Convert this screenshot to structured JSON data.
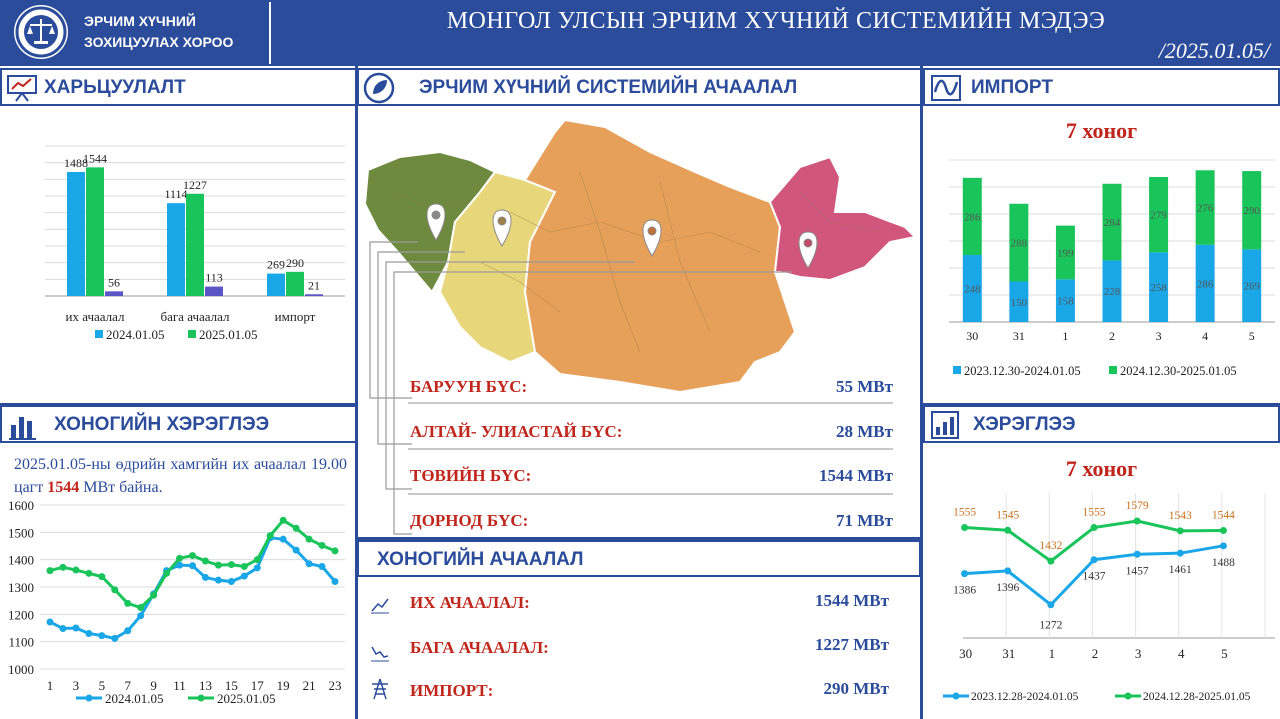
{
  "header": {
    "org_line1": "ЭРЧИМ ХҮЧНИЙ",
    "org_line2": "ЗОХИЦУУЛАХ ХОРОО",
    "title": "МОНГОЛ УЛСЫН ЭРЧИМ ХҮЧНИЙ СИСТЕМИЙН МЭДЭЭ",
    "date": "/2025.01.05/"
  },
  "panels": {
    "compare": "ХАРЬЦУУЛАЛТ",
    "system_load": "ЭРЧИМ ХҮЧНИЙ СИСТЕМИЙН АЧААЛАЛ",
    "import": "ИМПОРТ",
    "daily_consumption": "ХОНОГИЙН ХЭРЭГЛЭЭ",
    "consumption": "ХЭРЭГЛЭЭ",
    "daily_load": "ХОНОГИЙН АЧААЛАЛ"
  },
  "import_subtitle": "7 хоног",
  "consumption_subtitle": "7 хоног",
  "daily_note": {
    "before": "2025.01.05-ны өдрийн хамгийн их ачаалал 19.00 цагт ",
    "value": "1544",
    "after": " МВт байна."
  },
  "regions": [
    {
      "label": "БАРУУН БҮС:",
      "value": "55 МВт"
    },
    {
      "label": "АЛТАЙ- УЛИАСТАЙ БҮС:",
      "value": "28 МВт"
    },
    {
      "label": "ТӨВИЙН БҮС:",
      "value": "1544 МВт"
    },
    {
      "label": "ДОРНОД БҮС:",
      "value": "71 МВт"
    }
  ],
  "daily_load": [
    {
      "label": "ИХ АЧААЛАЛ:",
      "value": "1544 МВт",
      "icon": "trend-up-icon"
    },
    {
      "label": "БАГА АЧААЛАЛ:",
      "value": "1227 МВт",
      "icon": "trend-down-icon"
    },
    {
      "label": "ИМПОРТ:",
      "value": "290 МВт",
      "icon": "power-tower-icon"
    }
  ],
  "colors": {
    "navy": "#2b4b9b",
    "blue": "#1aa7e8",
    "green": "#19c45a",
    "purple": "#5b56c6",
    "red": "#c0261c",
    "orange": "#c9711c"
  },
  "chart_data": [
    {
      "id": "compare",
      "type": "bar",
      "categories": [
        "их ачаалал",
        "бага ачаалал",
        "импорт"
      ],
      "series": [
        {
          "name": "2024.01.05",
          "values": [
            1488,
            1114,
            269
          ]
        },
        {
          "name": "2025.01.05",
          "values": [
            1544,
            1227,
            290
          ]
        },
        {
          "name": "",
          "values": [
            56,
            113,
            21
          ]
        }
      ],
      "ylim": [
        0,
        1800
      ],
      "legend": "bottom"
    },
    {
      "id": "import",
      "type": "bar",
      "stacked": true,
      "categories": [
        "30",
        "31",
        "1",
        "2",
        "3",
        "4",
        "5"
      ],
      "series": [
        {
          "name": "2023.12.30-2024.01.05",
          "values": [
            248,
            150,
            158,
            228,
            258,
            286,
            269
          ]
        },
        {
          "name": "2024.12.30-2025.01.05",
          "values": [
            286,
            288,
            199,
            284,
            279,
            276,
            290
          ]
        }
      ],
      "ylim": [
        0,
        600
      ],
      "legend": "bottom"
    },
    {
      "id": "daily",
      "type": "line",
      "x": [
        1,
        2,
        3,
        4,
        5,
        6,
        7,
        8,
        9,
        10,
        11,
        12,
        13,
        14,
        15,
        16,
        17,
        18,
        19,
        20,
        21,
        22,
        23,
        24
      ],
      "xticks": [
        "1",
        "3",
        "5",
        "7",
        "9",
        "11",
        "13",
        "15",
        "17",
        "19",
        "21",
        "23"
      ],
      "series": [
        {
          "name": "2024.01.05",
          "values": [
            1172,
            1148,
            1150,
            1130,
            1122,
            1112,
            1140,
            1195,
            1275,
            1360,
            1380,
            1378,
            1335,
            1325,
            1320,
            1340,
            1370,
            1480,
            1475,
            1435,
            1385,
            1375,
            1320,
            null
          ]
        },
        {
          "name": "2025.01.05",
          "values": [
            1360,
            1372,
            1362,
            1350,
            1338,
            1290,
            1240,
            1225,
            1270,
            1350,
            1405,
            1415,
            1395,
            1380,
            1382,
            1375,
            1400,
            1488,
            1544,
            1515,
            1475,
            1452,
            1432,
            null
          ]
        }
      ],
      "yticks": [
        1000,
        1100,
        1200,
        1300,
        1400,
        1500,
        1600
      ],
      "ylim": [
        1000,
        1600
      ],
      "legend": "bottom"
    },
    {
      "id": "consumption",
      "type": "line",
      "categories": [
        "30",
        "31",
        "1",
        "2",
        "3",
        "4",
        "5"
      ],
      "series": [
        {
          "name": "2023.12.28-2024.01.05",
          "values": [
            1386,
            1396,
            1272,
            1437,
            1457,
            1461,
            1488
          ]
        },
        {
          "name": "2024.12.28-2025.01.05",
          "values": [
            1555,
            1545,
            1432,
            1555,
            1579,
            1543,
            1544
          ]
        }
      ],
      "ylim": [
        1150,
        1700
      ],
      "legend": "bottom"
    }
  ]
}
